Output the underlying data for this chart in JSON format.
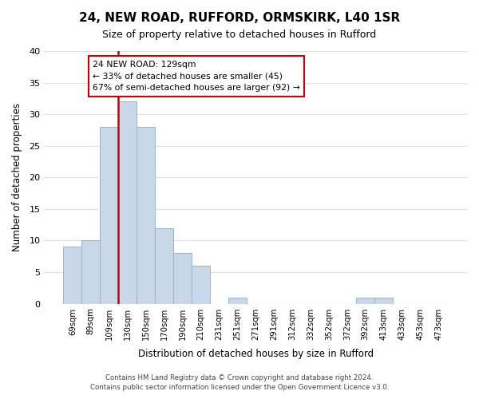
{
  "title": "24, NEW ROAD, RUFFORD, ORMSKIRK, L40 1SR",
  "subtitle": "Size of property relative to detached houses in Rufford",
  "xlabel": "Distribution of detached houses by size in Rufford",
  "ylabel": "Number of detached properties",
  "footer_line1": "Contains HM Land Registry data © Crown copyright and database right 2024.",
  "footer_line2": "Contains public sector information licensed under the Open Government Licence v3.0.",
  "bins": [
    "69sqm",
    "89sqm",
    "109sqm",
    "130sqm",
    "150sqm",
    "170sqm",
    "190sqm",
    "210sqm",
    "231sqm",
    "251sqm",
    "271sqm",
    "291sqm",
    "312sqm",
    "332sqm",
    "352sqm",
    "372sqm",
    "392sqm",
    "413sqm",
    "433sqm",
    "453sqm",
    "473sqm"
  ],
  "values": [
    9,
    10,
    28,
    32,
    28,
    12,
    8,
    6,
    0,
    1,
    0,
    0,
    0,
    0,
    0,
    0,
    1,
    1,
    0,
    0,
    0
  ],
  "bar_color": "#c8d8e8",
  "bar_edge_color": "#a0b8cc",
  "vline_x_index": 3,
  "vline_color": "#cc0000",
  "ylim": [
    0,
    40
  ],
  "yticks": [
    0,
    5,
    10,
    15,
    20,
    25,
    30,
    35,
    40
  ],
  "annotation_text": "24 NEW ROAD: 129sqm\n← 33% of detached houses are smaller (45)\n67% of semi-detached houses are larger (92) →",
  "annotation_box_color": "#ffffff",
  "annotation_box_edge": "#cc0000",
  "background_color": "#ffffff",
  "grid_color": "#e0e0e0"
}
